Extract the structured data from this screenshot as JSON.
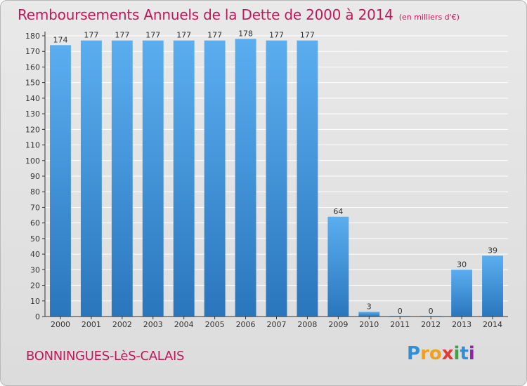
{
  "header": {
    "title": "Remboursements Annuels de la Dette de 2000 à 2014",
    "subtitle": "(en milliers d'€)"
  },
  "footer": {
    "commune": "BONNINGUES-LèS-CALAIS",
    "logo_text": "Proxiti"
  },
  "colors": {
    "title": "#c2185b",
    "bar_top": "#5aaef0",
    "bar_bottom": "#2a76bd",
    "axis": "#333333",
    "grid": "#ffffff"
  },
  "chart_data": {
    "type": "bar",
    "title": "Remboursements Annuels de la Dette de 2000 à 2014",
    "subtitle": "(en milliers d'€)",
    "xlabel": "",
    "ylabel": "",
    "categories": [
      "2000",
      "2001",
      "2002",
      "2003",
      "2004",
      "2005",
      "2006",
      "2007",
      "2008",
      "2009",
      "2010",
      "2011",
      "2012",
      "2013",
      "2014"
    ],
    "values": [
      174,
      177,
      177,
      177,
      177,
      177,
      178,
      177,
      177,
      64,
      3,
      0,
      0,
      30,
      39
    ],
    "data_labels": [
      "174",
      "177",
      "177",
      "177",
      "177",
      "177",
      "178",
      "177",
      "177",
      "64",
      "3",
      "0",
      "0",
      "30",
      "39"
    ],
    "ylim": [
      0,
      180
    ],
    "yticks": [
      0,
      10,
      20,
      30,
      40,
      50,
      60,
      70,
      80,
      90,
      100,
      110,
      120,
      130,
      140,
      150,
      160,
      170,
      180
    ],
    "grid": true,
    "legend": "none"
  }
}
